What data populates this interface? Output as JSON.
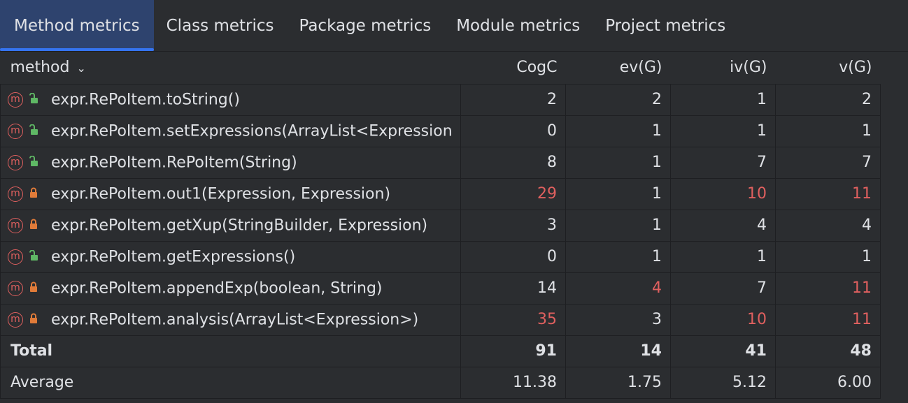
{
  "tabs": [
    {
      "label": "Method metrics",
      "active": true
    },
    {
      "label": "Class metrics"
    },
    {
      "label": "Package metrics"
    },
    {
      "label": "Module metrics"
    },
    {
      "label": "Project metrics"
    }
  ],
  "columns": {
    "method": "method",
    "cogc": "CogC",
    "evg": "ev(G)",
    "ivg": "iv(G)",
    "vg": "v(G)"
  },
  "colors": {
    "accent": "#3574f0",
    "warning": "#e0605f",
    "public_lock": "#5fb865",
    "private_lock": "#e07b39"
  },
  "rows": [
    {
      "name": "expr.RePoItem.toString()",
      "lock": "public",
      "cogc": "2",
      "evg": "2",
      "ivg": "1",
      "vg": "2",
      "red": []
    },
    {
      "name": "expr.RePoItem.setExpressions(ArrayList<Expression",
      "lock": "public",
      "cogc": "0",
      "evg": "1",
      "ivg": "1",
      "vg": "1",
      "red": []
    },
    {
      "name": "expr.RePoItem.RePoItem(String)",
      "lock": "public",
      "cogc": "8",
      "evg": "1",
      "ivg": "7",
      "vg": "7",
      "red": []
    },
    {
      "name": "expr.RePoItem.out1(Expression, Expression)",
      "lock": "private",
      "cogc": "29",
      "evg": "1",
      "ivg": "10",
      "vg": "11",
      "red": [
        "cogc",
        "ivg",
        "vg"
      ]
    },
    {
      "name": "expr.RePoItem.getXup(StringBuilder, Expression)",
      "lock": "private",
      "cogc": "3",
      "evg": "1",
      "ivg": "4",
      "vg": "4",
      "red": []
    },
    {
      "name": "expr.RePoItem.getExpressions()",
      "lock": "public",
      "cogc": "0",
      "evg": "1",
      "ivg": "1",
      "vg": "1",
      "red": []
    },
    {
      "name": "expr.RePoItem.appendExp(boolean, String)",
      "lock": "private",
      "cogc": "14",
      "evg": "4",
      "ivg": "7",
      "vg": "11",
      "red": [
        "evg",
        "vg"
      ]
    },
    {
      "name": "expr.RePoItem.analysis(ArrayList<Expression>)",
      "lock": "private",
      "cogc": "35",
      "evg": "3",
      "ivg": "10",
      "vg": "11",
      "red": [
        "cogc",
        "ivg",
        "vg"
      ]
    }
  ],
  "total": {
    "label": "Total",
    "cogc": "91",
    "evg": "14",
    "ivg": "41",
    "vg": "48"
  },
  "average": {
    "label": "Average",
    "cogc": "11.38",
    "evg": "1.75",
    "ivg": "5.12",
    "vg": "6.00"
  }
}
